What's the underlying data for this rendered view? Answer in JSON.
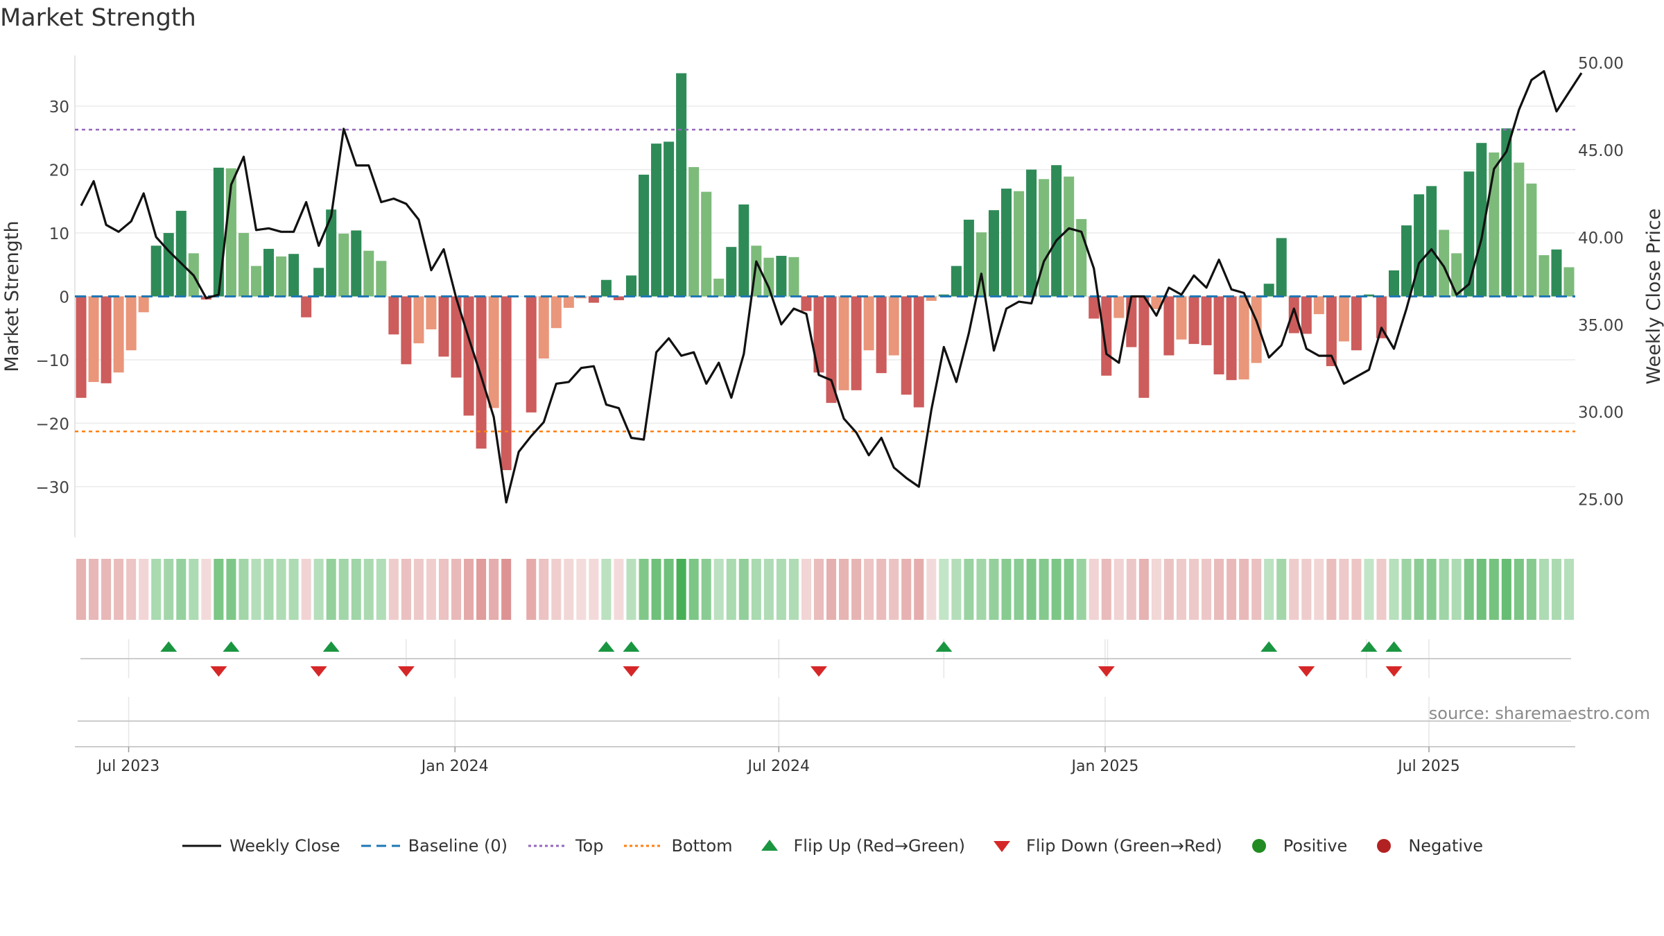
{
  "chart_data": {
    "type": "bar+line",
    "title": "Market Strength",
    "source": "source: sharemaestro.com",
    "left_axis": {
      "label": "Market Strength",
      "range": [
        -38,
        38
      ],
      "ticks": [
        30,
        20,
        10,
        0,
        -10,
        -20,
        -30
      ],
      "tick_labels": [
        "30",
        "20",
        "10",
        "0",
        "−10",
        "−20",
        "−30"
      ]
    },
    "right_axis": {
      "label": "Weekly Close Price",
      "range": [
        22.8,
        50.4
      ],
      "ticks": [
        50,
        45,
        40,
        35,
        30,
        25
      ],
      "tick_labels": [
        "50.00",
        "45.00",
        "40.00",
        "35.00",
        "30.00",
        "25.00"
      ]
    },
    "x_axis": {
      "ticks": [
        4.3,
        30.4,
        56.3,
        82.4,
        108.3
      ],
      "tick_labels": [
        "Jul 2023",
        "Jan 2024",
        "Jul 2024",
        "Jan 2025",
        "Jul 2025"
      ]
    },
    "reference_lines": {
      "baseline": 0,
      "top": 26.3,
      "bottom": -21.3
    },
    "strength": [
      -16,
      -13.5,
      -13.7,
      -12,
      -8.5,
      -2.5,
      8,
      10,
      13.5,
      6.8,
      -0.5,
      20.3,
      20.2,
      10,
      4.8,
      7.5,
      6.3,
      6.7,
      -3.3,
      4.5,
      13.7,
      9.9,
      10.4,
      7.2,
      5.6,
      -6,
      -10.7,
      -7.4,
      -5.2,
      -9.5,
      -12.8,
      -18.8,
      -24,
      -17.6,
      -27.4,
      0,
      -18.3,
      -9.8,
      -5,
      -1.8,
      -0.3,
      -1,
      2.6,
      -0.6,
      3.3,
      19.2,
      24.1,
      24.4,
      35.2,
      20.4,
      16.5,
      2.8,
      7.8,
      14.5,
      8,
      6.1,
      6.4,
      6.2,
      -2.3,
      -12,
      -16.8,
      -14.8,
      -14.8,
      -8.5,
      -12.1,
      -9.3,
      -15.5,
      -17.5,
      -0.7,
      0.3,
      4.8,
      12.1,
      10.1,
      13.6,
      17,
      16.6,
      20,
      18.5,
      20.7,
      18.9,
      12.2,
      -3.5,
      -12.5,
      -3.4,
      -8,
      -16,
      -2,
      -9.3,
      -6.8,
      -7.5,
      -7.7,
      -12.3,
      -13.2,
      -13.1,
      -10.5,
      2,
      9.2,
      -5.8,
      -5.9,
      -2.8,
      -11,
      -7.1,
      -8.5,
      0.3,
      -6.6,
      4.1,
      11.2,
      16.1,
      17.4,
      10.5,
      6.8,
      19.7,
      24.2,
      22.7,
      26.5,
      21.1,
      17.8,
      6.5,
      7.4,
      4.6
    ],
    "close": [
      41.8,
      43.2,
      40.7,
      40.3,
      40.9,
      42.5,
      40,
      39.2,
      38.5,
      37.8,
      36.5,
      36.7,
      43,
      44.6,
      40.4,
      40.5,
      40.3,
      40.3,
      42,
      39.5,
      41.2,
      46.2,
      44.1,
      44.1,
      42,
      42.2,
      41.9,
      41,
      38.1,
      39.3,
      36.5,
      34.2,
      32,
      29.7,
      24.8,
      27.7,
      28.6,
      29.4,
      31.6,
      31.7,
      32.5,
      32.6,
      30.4,
      30.2,
      28.5,
      28.4,
      33.4,
      34.2,
      33.2,
      33.4,
      31.6,
      32.8,
      30.8,
      33.3,
      38.6,
      37.1,
      35,
      35.9,
      35.6,
      32.1,
      31.8,
      29.6,
      28.8,
      27.5,
      28.5,
      26.8,
      26.2,
      25.7,
      30.1,
      33.7,
      31.7,
      34.5,
      37.9,
      33.5,
      35.9,
      36.3,
      36.2,
      38.6,
      39.8,
      40.5,
      40.3,
      38.2,
      33.3,
      32.8,
      36.6,
      36.6,
      35.5,
      37.1,
      36.7,
      37.8,
      37.1,
      38.7,
      37,
      36.8,
      35.2,
      33.1,
      33.8,
      35.9,
      33.6,
      33.2,
      33.2,
      31.6,
      32,
      32.4,
      34.8,
      33.6,
      35.9,
      38.5,
      39.3,
      38.3,
      36.7,
      37.3,
      39.9,
      43.9,
      44.9,
      47.3,
      49,
      49.5,
      47.2,
      48.3,
      49.4
    ],
    "flip_up_indices": [
      7,
      12,
      20,
      42,
      44,
      69,
      95,
      103,
      105
    ],
    "flip_down_indices": [
      11,
      19,
      26,
      44,
      59,
      82,
      98,
      105
    ],
    "colors": {
      "strong_positive": "#2e8b57",
      "weak_positive": "#7dbb7a",
      "strong_negative": "#cd5c5c",
      "weak_negative": "#e9967a",
      "price_line": "#111111",
      "baseline": "#1f77b4",
      "top": "#9467bd",
      "bottom": "#ff7f0e",
      "flip_up": "#1a9641",
      "flip_down": "#d62728",
      "positive_dot": "#228b22",
      "negative_dot": "#b22222"
    },
    "legend": [
      {
        "key": "close",
        "label": "Weekly Close"
      },
      {
        "key": "baseline",
        "label": "Baseline (0)"
      },
      {
        "key": "top",
        "label": "Top"
      },
      {
        "key": "bottom",
        "label": "Bottom"
      },
      {
        "key": "flip_up",
        "label": "Flip Up (Red→Green)"
      },
      {
        "key": "flip_down",
        "label": "Flip Down (Green→Red)"
      },
      {
        "key": "positive",
        "label": "Positive"
      },
      {
        "key": "negative",
        "label": "Negative"
      }
    ]
  }
}
